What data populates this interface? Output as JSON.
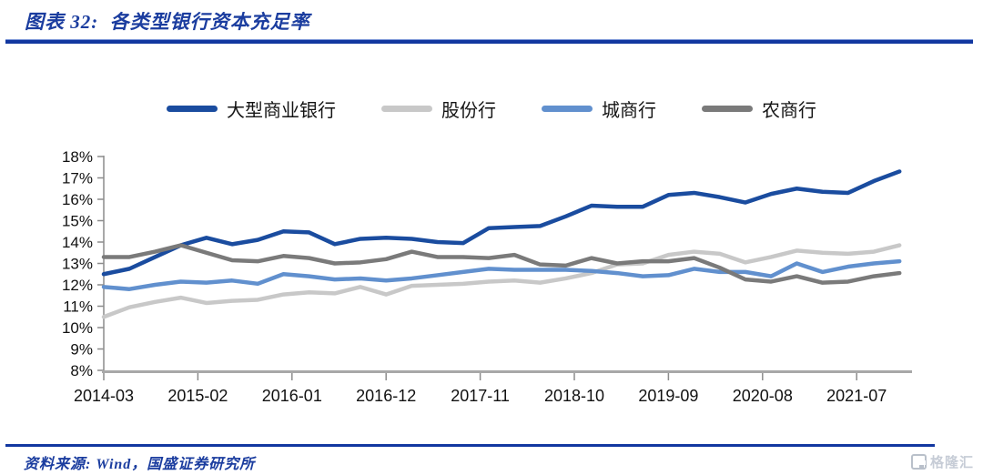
{
  "header": {
    "title": "图表 32:  各类型银行资本充足率"
  },
  "source": {
    "label": "资料来源: Wind，国盛证券研究所"
  },
  "watermark": {
    "text": "格隆汇"
  },
  "colors": {
    "accent_rule": "#1237A0",
    "title_text": "#1B3D9F",
    "axis_line": "#8c8c8c",
    "x_axis_line": "#a8a8a8",
    "axis_text": "#111111",
    "watermark_gray": "#bcc2cc"
  },
  "chart_data": {
    "type": "line",
    "title": "各类型银行资本充足率",
    "ylabel": "",
    "xlabel": "",
    "ylim": [
      8,
      18
    ],
    "y_ticks": [
      "8%",
      "9%",
      "10%",
      "11%",
      "12%",
      "13%",
      "14%",
      "15%",
      "16%",
      "17%",
      "18%"
    ],
    "y_tick_suffix": "%",
    "grid": false,
    "legend_position": "top",
    "x_tick_labels": [
      "2014-03",
      "2015-02",
      "2016-01",
      "2016-12",
      "2017-11",
      "2018-10",
      "2019-09",
      "2020-08",
      "2021-07"
    ],
    "x": [
      "2014-03",
      "2014-06",
      "2014-09",
      "2014-12",
      "2015-03",
      "2015-06",
      "2015-09",
      "2015-12",
      "2016-03",
      "2016-06",
      "2016-09",
      "2016-12",
      "2017-03",
      "2017-06",
      "2017-09",
      "2017-12",
      "2018-03",
      "2018-06",
      "2018-09",
      "2018-12",
      "2019-03",
      "2019-06",
      "2019-09",
      "2019-12",
      "2020-03",
      "2020-06",
      "2020-09",
      "2020-12",
      "2021-03",
      "2021-06",
      "2021-09",
      "2021-12"
    ],
    "unit": "percent",
    "series": [
      {
        "name": "大型商业银行",
        "color": "#1A4C9F",
        "values": [
          12.5,
          12.75,
          13.3,
          13.85,
          14.2,
          13.9,
          14.1,
          14.5,
          14.45,
          13.9,
          14.15,
          14.2,
          14.15,
          14.0,
          13.95,
          14.65,
          14.7,
          14.75,
          15.2,
          15.7,
          15.65,
          15.65,
          16.2,
          16.3,
          16.1,
          15.85,
          16.25,
          16.5,
          16.35,
          16.3,
          16.85,
          17.3
        ]
      },
      {
        "name": "股份行",
        "color": "#C8C8C8",
        "values": [
          10.5,
          10.95,
          11.2,
          11.4,
          11.15,
          11.25,
          11.3,
          11.55,
          11.65,
          11.6,
          11.9,
          11.55,
          11.95,
          12.0,
          12.05,
          12.15,
          12.2,
          12.1,
          12.3,
          12.55,
          12.95,
          13.0,
          13.4,
          13.55,
          13.45,
          13.05,
          13.3,
          13.6,
          13.5,
          13.45,
          13.55,
          13.85
        ]
      },
      {
        "name": "城商行",
        "color": "#6190CE",
        "values": [
          11.9,
          11.8,
          12.0,
          12.15,
          12.1,
          12.2,
          12.05,
          12.5,
          12.4,
          12.25,
          12.3,
          12.2,
          12.3,
          12.45,
          12.6,
          12.75,
          12.7,
          12.7,
          12.7,
          12.65,
          12.55,
          12.4,
          12.45,
          12.75,
          12.6,
          12.6,
          12.4,
          13.0,
          12.6,
          12.85,
          13.0,
          13.1
        ]
      },
      {
        "name": "农商行",
        "color": "#7A7A7A",
        "values": [
          13.3,
          13.3,
          13.55,
          13.85,
          13.5,
          13.15,
          13.1,
          13.35,
          13.25,
          13.0,
          13.05,
          13.2,
          13.55,
          13.3,
          13.3,
          13.25,
          13.4,
          12.95,
          12.9,
          13.25,
          13.0,
          13.1,
          13.1,
          13.25,
          12.8,
          12.25,
          12.15,
          12.4,
          12.1,
          12.15,
          12.4,
          12.55
        ]
      }
    ]
  }
}
